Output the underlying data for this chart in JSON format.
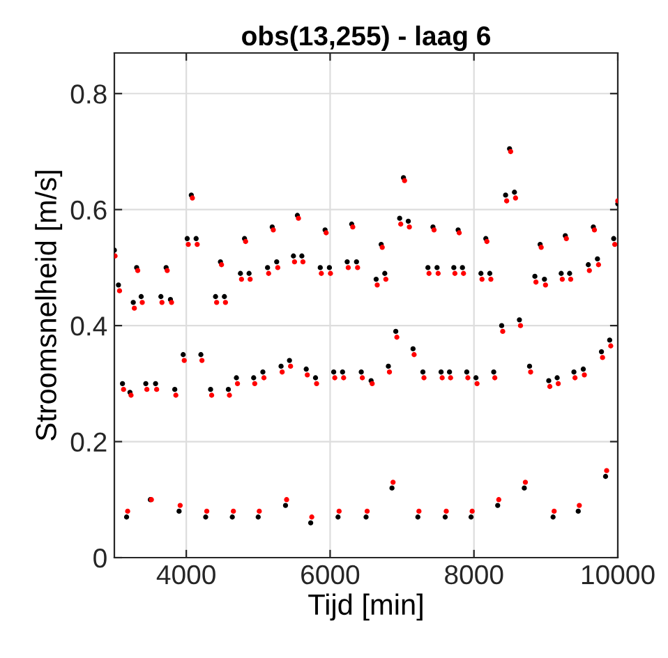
{
  "chart_data": {
    "type": "scatter",
    "title": "obs(13,255) - laag 6",
    "xlabel": "Tijd [min]",
    "ylabel": "Stroomsnelheid [m/s]",
    "xlim": [
      3000,
      10000
    ],
    "xticks": [
      4000,
      6000,
      8000,
      10000
    ],
    "ylim": [
      0,
      0.87
    ],
    "yticks": [
      0,
      0.2,
      0.4,
      0.6,
      0.8
    ],
    "grid": true,
    "marker": "circle",
    "series": [
      {
        "color": "#000000",
        "x": [
          3000,
          3057,
          3113,
          3170,
          3217,
          3263,
          3310,
          3373,
          3437,
          3500,
          3573,
          3647,
          3720,
          3780,
          3840,
          3900,
          3957,
          4013,
          4070,
          4137,
          4203,
          4270,
          4338,
          4407,
          4475,
          4530,
          4585,
          4640,
          4697,
          4753,
          4810,
          4873,
          4937,
          5000,
          5065,
          5130,
          5195,
          5257,
          5318,
          5380,
          5435,
          5490,
          5545,
          5607,
          5668,
          5730,
          5797,
          5863,
          5930,
          5990,
          6050,
          6110,
          6173,
          6237,
          6300,
          6367,
          6433,
          6500,
          6570,
          6640,
          6710,
          6760,
          6810,
          6860,
          6913,
          6967,
          7020,
          7087,
          7153,
          7220,
          7290,
          7360,
          7430,
          7487,
          7543,
          7600,
          7660,
          7720,
          7780,
          7840,
          7900,
          7960,
          8028,
          8097,
          8165,
          8220,
          8275,
          8330,
          8385,
          8440,
          8495,
          8563,
          8632,
          8700,
          8773,
          8847,
          8920,
          8980,
          9040,
          9100,
          9157,
          9213,
          9270,
          9330,
          9390,
          9450,
          9520,
          9590,
          9660,
          9717,
          9773,
          9830,
          9887,
          9943,
          10000
        ],
        "values": [
          0.53,
          0.47,
          0.3,
          0.07,
          0.285,
          0.44,
          0.5,
          0.45,
          0.3,
          0.1,
          0.3,
          0.45,
          0.5,
          0.445,
          0.29,
          0.08,
          0.35,
          0.55,
          0.625,
          0.55,
          0.35,
          0.07,
          0.29,
          0.45,
          0.51,
          0.45,
          0.29,
          0.07,
          0.31,
          0.49,
          0.55,
          0.49,
          0.31,
          0.07,
          0.32,
          0.5,
          0.57,
          0.51,
          0.33,
          0.09,
          0.34,
          0.52,
          0.59,
          0.52,
          0.325,
          0.06,
          0.31,
          0.5,
          0.565,
          0.5,
          0.32,
          0.07,
          0.32,
          0.51,
          0.575,
          0.51,
          0.32,
          0.07,
          0.305,
          0.48,
          0.54,
          0.49,
          0.33,
          0.12,
          0.39,
          0.585,
          0.655,
          0.58,
          0.36,
          0.07,
          0.32,
          0.5,
          0.57,
          0.5,
          0.32,
          0.07,
          0.32,
          0.5,
          0.565,
          0.5,
          0.32,
          0.07,
          0.31,
          0.49,
          0.55,
          0.49,
          0.32,
          0.09,
          0.4,
          0.625,
          0.705,
          0.63,
          0.41,
          0.12,
          0.33,
          0.485,
          0.54,
          0.48,
          0.305,
          0.07,
          0.31,
          0.49,
          0.555,
          0.49,
          0.32,
          0.08,
          0.325,
          0.505,
          0.57,
          0.515,
          0.355,
          0.14,
          0.375,
          0.55,
          0.61
        ]
      },
      {
        "color": "#ff0000",
        "x": [
          3010,
          3072,
          3128,
          3185,
          3232,
          3278,
          3325,
          3388,
          3452,
          3515,
          3588,
          3662,
          3735,
          3795,
          3855,
          3915,
          3972,
          4028,
          4085,
          4152,
          4218,
          4285,
          4353,
          4422,
          4490,
          4545,
          4600,
          4655,
          4712,
          4768,
          4825,
          4888,
          4952,
          5015,
          5080,
          5145,
          5210,
          5272,
          5333,
          5395,
          5450,
          5505,
          5560,
          5622,
          5683,
          5745,
          5812,
          5878,
          5945,
          6005,
          6065,
          6125,
          6188,
          6252,
          6315,
          6382,
          6448,
          6515,
          6585,
          6655,
          6725,
          6775,
          6825,
          6875,
          6928,
          6982,
          7035,
          7102,
          7168,
          7235,
          7305,
          7375,
          7445,
          7502,
          7558,
          7615,
          7675,
          7735,
          7795,
          7855,
          7915,
          7975,
          8043,
          8112,
          8180,
          8235,
          8290,
          8345,
          8400,
          8455,
          8510,
          8578,
          8647,
          8715,
          8788,
          8862,
          8935,
          8995,
          9055,
          9115,
          9172,
          9228,
          9285,
          9345,
          9405,
          9465,
          9535,
          9605,
          9675,
          9732,
          9788,
          9845,
          9902,
          9958,
          10000
        ],
        "values": [
          0.52,
          0.46,
          0.29,
          0.08,
          0.28,
          0.43,
          0.495,
          0.44,
          0.29,
          0.1,
          0.29,
          0.44,
          0.495,
          0.44,
          0.28,
          0.09,
          0.34,
          0.54,
          0.62,
          0.54,
          0.34,
          0.08,
          0.28,
          0.44,
          0.505,
          0.44,
          0.28,
          0.08,
          0.3,
          0.48,
          0.545,
          0.48,
          0.3,
          0.08,
          0.31,
          0.49,
          0.565,
          0.5,
          0.32,
          0.1,
          0.33,
          0.51,
          0.585,
          0.51,
          0.315,
          0.07,
          0.3,
          0.49,
          0.56,
          0.49,
          0.31,
          0.08,
          0.31,
          0.5,
          0.57,
          0.5,
          0.31,
          0.08,
          0.3,
          0.47,
          0.535,
          0.48,
          0.32,
          0.13,
          0.38,
          0.575,
          0.65,
          0.57,
          0.35,
          0.08,
          0.31,
          0.49,
          0.565,
          0.49,
          0.31,
          0.08,
          0.31,
          0.49,
          0.56,
          0.49,
          0.31,
          0.08,
          0.3,
          0.48,
          0.545,
          0.48,
          0.31,
          0.1,
          0.39,
          0.615,
          0.7,
          0.62,
          0.4,
          0.13,
          0.32,
          0.475,
          0.535,
          0.47,
          0.295,
          0.08,
          0.3,
          0.48,
          0.55,
          0.48,
          0.31,
          0.09,
          0.315,
          0.495,
          0.565,
          0.505,
          0.345,
          0.15,
          0.365,
          0.54,
          0.615
        ]
      }
    ]
  }
}
